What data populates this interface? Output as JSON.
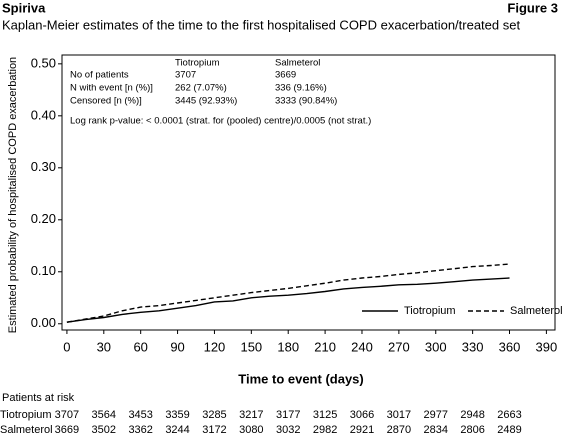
{
  "chart_data": {
    "type": "line",
    "header_left": "Spiriva",
    "header_right": "Figure 3",
    "title": "Kaplan-Meier estimates of the time to the first hospitalised COPD exacerbation/treated set",
    "x_label": "Time to event (days)",
    "y_label": "Estimated probability of hospitalised COPD exacerbation",
    "xlim": [
      -4,
      397
    ],
    "ylim": [
      -0.012,
      0.517
    ],
    "xticks": [
      0,
      30,
      60,
      90,
      120,
      150,
      180,
      210,
      240,
      270,
      300,
      330,
      360,
      390
    ],
    "yticks": [
      {
        "value": 0,
        "label": "0.00"
      },
      {
        "value": 0.1,
        "label": "0.10"
      },
      {
        "value": 0.2,
        "label": "0.20"
      },
      {
        "value": 0.3,
        "label": "0.30"
      },
      {
        "value": 0.4,
        "label": "0.40"
      },
      {
        "value": 0.5,
        "label": "0.50"
      }
    ],
    "legend": "lower right",
    "series": [
      {
        "name": "Tiotropium",
        "color": "#000000",
        "dash": "solid",
        "x": [
          0,
          15,
          30,
          45,
          60,
          75,
          90,
          105,
          120,
          135,
          150,
          165,
          180,
          195,
          210,
          225,
          240,
          255,
          270,
          285,
          300,
          315,
          330,
          345,
          360
        ],
        "values": [
          0.003,
          0.008,
          0.012,
          0.018,
          0.022,
          0.025,
          0.03,
          0.035,
          0.042,
          0.044,
          0.05,
          0.053,
          0.055,
          0.058,
          0.062,
          0.067,
          0.07,
          0.072,
          0.075,
          0.076,
          0.078,
          0.081,
          0.084,
          0.086,
          0.088
        ]
      },
      {
        "name": "Salmeterol",
        "color": "#000000",
        "dash": "dashed",
        "x": [
          0,
          15,
          30,
          45,
          60,
          75,
          90,
          105,
          120,
          135,
          150,
          165,
          180,
          195,
          210,
          225,
          240,
          255,
          270,
          285,
          300,
          315,
          330,
          345,
          360
        ],
        "values": [
          0.003,
          0.009,
          0.015,
          0.025,
          0.032,
          0.035,
          0.04,
          0.045,
          0.05,
          0.055,
          0.06,
          0.064,
          0.068,
          0.073,
          0.078,
          0.084,
          0.088,
          0.091,
          0.095,
          0.098,
          0.102,
          0.106,
          0.11,
          0.112,
          0.115
        ]
      }
    ],
    "stats_table": {
      "columns": [
        "Tiotropium",
        "Salmeterol"
      ],
      "rows": [
        [
          "No of patients",
          "3707",
          "3669"
        ],
        [
          "N with event [n (%)]",
          "262 (7.07%)",
          "336 (9.16%)"
        ],
        [
          "Censored [n (%)]",
          "3445 (92.93%)",
          "3333 (90.84%)"
        ]
      ],
      "note": "Log rank p-value: < 0.0001 (strat. for (pooled) centre)/0.0005 (not strat.)"
    },
    "at_risk": {
      "title": "Patients at risk",
      "rows": [
        {
          "name": "Tiotropium",
          "values": [
            3707,
            3564,
            3453,
            3359,
            3285,
            3217,
            3177,
            3125,
            3066,
            3017,
            2977,
            2948,
            2663
          ]
        },
        {
          "name": "Salmeterol",
          "values": [
            3669,
            3502,
            3362,
            3244,
            3172,
            3080,
            3032,
            2982,
            2921,
            2870,
            2834,
            2806,
            2489
          ]
        }
      ]
    }
  }
}
